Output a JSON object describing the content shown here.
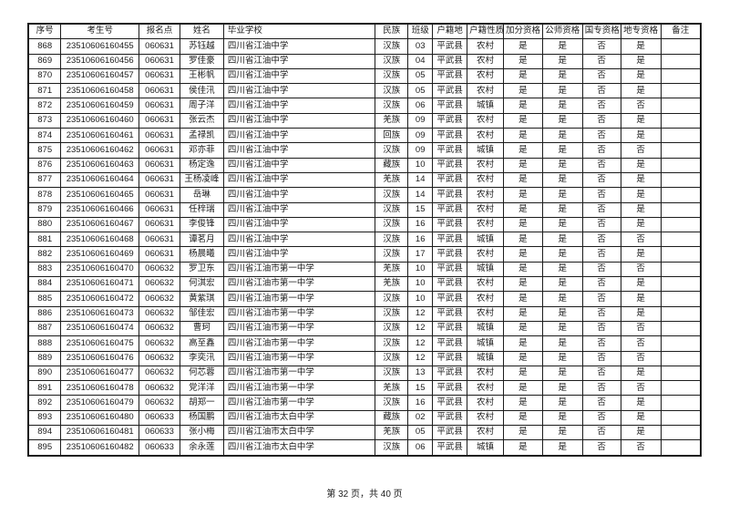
{
  "table": {
    "headers": [
      "序号",
      "考生号",
      "报名点",
      "姓名",
      "毕业学校",
      "民族",
      "班级",
      "户籍地",
      "户籍性质",
      "加分资格",
      "公师资格",
      "国专资格",
      "地专资格",
      "备注"
    ],
    "column_keys": [
      "index",
      "candidate-no",
      "reg-point",
      "name",
      "school",
      "ethnicity",
      "class",
      "household-place",
      "household-type",
      "bonus-qual",
      "public-teacher-qual",
      "national-special-qual",
      "local-special-qual",
      "remark"
    ],
    "rows": [
      [
        "868",
        "23510606160455",
        "060631",
        "苏钰越",
        "四川省江油中学",
        "汉族",
        "03",
        "平武县",
        "农村",
        "是",
        "是",
        "否",
        "是",
        ""
      ],
      [
        "869",
        "23510606160456",
        "060631",
        "罗佳豪",
        "四川省江油中学",
        "汉族",
        "04",
        "平武县",
        "农村",
        "是",
        "是",
        "否",
        "是",
        ""
      ],
      [
        "870",
        "23510606160457",
        "060631",
        "王彬帆",
        "四川省江油中学",
        "汉族",
        "05",
        "平武县",
        "农村",
        "是",
        "是",
        "否",
        "是",
        ""
      ],
      [
        "871",
        "23510606160458",
        "060631",
        "侯佳汛",
        "四川省江油中学",
        "汉族",
        "05",
        "平武县",
        "农村",
        "是",
        "是",
        "否",
        "是",
        ""
      ],
      [
        "872",
        "23510606160459",
        "060631",
        "周子洋",
        "四川省江油中学",
        "汉族",
        "06",
        "平武县",
        "城镇",
        "是",
        "是",
        "否",
        "否",
        ""
      ],
      [
        "873",
        "23510606160460",
        "060631",
        "张云杰",
        "四川省江油中学",
        "羌族",
        "09",
        "平武县",
        "农村",
        "是",
        "是",
        "否",
        "是",
        ""
      ],
      [
        "874",
        "23510606160461",
        "060631",
        "孟禄凯",
        "四川省江油中学",
        "回族",
        "09",
        "平武县",
        "农村",
        "是",
        "是",
        "否",
        "是",
        ""
      ],
      [
        "875",
        "23510606160462",
        "060631",
        "邓亦菲",
        "四川省江油中学",
        "汉族",
        "09",
        "平武县",
        "城镇",
        "是",
        "是",
        "否",
        "否",
        ""
      ],
      [
        "876",
        "23510606160463",
        "060631",
        "杨定逸",
        "四川省江油中学",
        "藏族",
        "10",
        "平武县",
        "农村",
        "是",
        "是",
        "否",
        "是",
        ""
      ],
      [
        "877",
        "23510606160464",
        "060631",
        "王杨凌峰",
        "四川省江油中学",
        "羌族",
        "14",
        "平武县",
        "农村",
        "是",
        "是",
        "否",
        "是",
        ""
      ],
      [
        "878",
        "23510606160465",
        "060631",
        "岳琳",
        "四川省江油中学",
        "汉族",
        "14",
        "平武县",
        "农村",
        "是",
        "是",
        "否",
        "是",
        ""
      ],
      [
        "879",
        "23510606160466",
        "060631",
        "任梓瑞",
        "四川省江油中学",
        "汉族",
        "15",
        "平武县",
        "农村",
        "是",
        "是",
        "否",
        "是",
        ""
      ],
      [
        "880",
        "23510606160467",
        "060631",
        "李俊锋",
        "四川省江油中学",
        "汉族",
        "16",
        "平武县",
        "农村",
        "是",
        "是",
        "否",
        "是",
        ""
      ],
      [
        "881",
        "23510606160468",
        "060631",
        "谭茗月",
        "四川省江油中学",
        "汉族",
        "16",
        "平武县",
        "城镇",
        "是",
        "是",
        "否",
        "否",
        ""
      ],
      [
        "882",
        "23510606160469",
        "060631",
        "杨晨曦",
        "四川省江油中学",
        "汉族",
        "17",
        "平武县",
        "农村",
        "是",
        "是",
        "否",
        "是",
        ""
      ],
      [
        "883",
        "23510606160470",
        "060632",
        "罗卫东",
        "四川省江油市第一中学",
        "羌族",
        "10",
        "平武县",
        "城镇",
        "是",
        "是",
        "否",
        "否",
        ""
      ],
      [
        "884",
        "23510606160471",
        "060632",
        "何淇宏",
        "四川省江油市第一中学",
        "羌族",
        "10",
        "平武县",
        "农村",
        "是",
        "是",
        "否",
        "是",
        ""
      ],
      [
        "885",
        "23510606160472",
        "060632",
        "黄紫琪",
        "四川省江油市第一中学",
        "汉族",
        "10",
        "平武县",
        "农村",
        "是",
        "是",
        "否",
        "是",
        ""
      ],
      [
        "886",
        "23510606160473",
        "060632",
        "邹佳宏",
        "四川省江油市第一中学",
        "汉族",
        "12",
        "平武县",
        "农村",
        "是",
        "是",
        "否",
        "是",
        ""
      ],
      [
        "887",
        "23510606160474",
        "060632",
        "曹珂",
        "四川省江油市第一中学",
        "汉族",
        "12",
        "平武县",
        "城镇",
        "是",
        "是",
        "否",
        "否",
        ""
      ],
      [
        "888",
        "23510606160475",
        "060632",
        "高至鑫",
        "四川省江油市第一中学",
        "汉族",
        "12",
        "平武县",
        "城镇",
        "是",
        "是",
        "否",
        "否",
        ""
      ],
      [
        "889",
        "23510606160476",
        "060632",
        "李奕汛",
        "四川省江油市第一中学",
        "汉族",
        "12",
        "平武县",
        "城镇",
        "是",
        "是",
        "否",
        "否",
        ""
      ],
      [
        "890",
        "23510606160477",
        "060632",
        "何芯蓉",
        "四川省江油市第一中学",
        "汉族",
        "13",
        "平武县",
        "农村",
        "是",
        "是",
        "否",
        "是",
        ""
      ],
      [
        "891",
        "23510606160478",
        "060632",
        "党洋洋",
        "四川省江油市第一中学",
        "羌族",
        "15",
        "平武县",
        "农村",
        "是",
        "是",
        "否",
        "否",
        ""
      ],
      [
        "892",
        "23510606160479",
        "060632",
        "胡郑一",
        "四川省江油市第一中学",
        "汉族",
        "16",
        "平武县",
        "农村",
        "是",
        "是",
        "否",
        "是",
        ""
      ],
      [
        "893",
        "23510606160480",
        "060633",
        "杨国鹏",
        "四川省江油市太白中学",
        "藏族",
        "02",
        "平武县",
        "农村",
        "是",
        "是",
        "否",
        "是",
        ""
      ],
      [
        "894",
        "23510606160481",
        "060633",
        "张小梅",
        "四川省江油市太白中学",
        "羌族",
        "05",
        "平武县",
        "农村",
        "是",
        "是",
        "否",
        "是",
        ""
      ],
      [
        "895",
        "23510606160482",
        "060633",
        "余永莲",
        "四川省江油市太白中学",
        "汉族",
        "06",
        "平武县",
        "城镇",
        "是",
        "是",
        "否",
        "否",
        ""
      ]
    ]
  },
  "footer": {
    "page_indicator": "第 32 页，共 40 页"
  },
  "colors": {
    "background": "#ffffff",
    "border": "#1c1c1c",
    "text": "#1c1c1c"
  }
}
